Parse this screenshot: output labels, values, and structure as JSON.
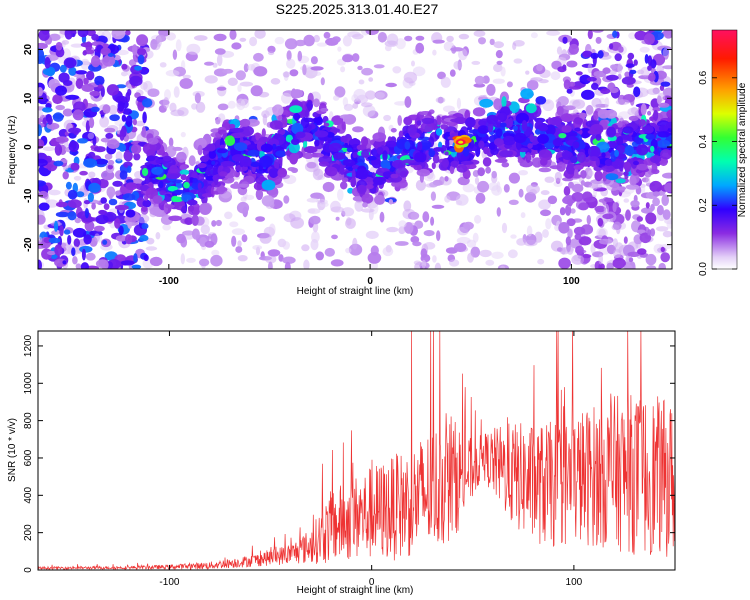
{
  "title": "S225.2025.313.01.40.E27",
  "chart_data": [
    {
      "type": "heatmap",
      "name": "spectrogram",
      "xlabel": "Height of straight line (km)",
      "ylabel": "Frequency (Hz)",
      "xlim": [
        -165,
        150
      ],
      "ylim": [
        -25,
        24
      ],
      "xticks": [
        -100,
        0,
        100
      ],
      "yticks": [
        -20,
        -10,
        0,
        10,
        20
      ],
      "colorbar": {
        "label": "Normalized spectral amplitude",
        "range": [
          0,
          0.75
        ],
        "ticks": [
          0.0,
          0.2,
          0.4,
          0.6
        ],
        "tick_labels": [
          "0.0",
          "0.2",
          "0.4",
          "0.6"
        ]
      },
      "ridge": {
        "description": "dominant frequency ridge (Hz) vs height (km)",
        "x": [
          -110,
          -100,
          -90,
          -80,
          -70,
          -60,
          -50,
          -40,
          -30,
          -20,
          -10,
          0,
          10,
          20,
          30,
          40,
          50,
          60,
          70,
          80,
          90,
          100,
          110,
          120,
          130,
          140,
          150
        ],
        "y": [
          -4,
          -7,
          -10,
          -5,
          0,
          -2,
          -3,
          3,
          5,
          0,
          -2,
          -5,
          -3,
          0,
          1,
          0,
          1,
          2,
          4,
          3,
          2,
          0,
          1,
          -1,
          0,
          1,
          2
        ]
      },
      "peak": {
        "x": 45,
        "y": 1,
        "value": 0.72
      }
    },
    {
      "type": "line",
      "name": "snr",
      "xlabel": "Height of straight line (km)",
      "ylabel": "SNR (10 * v/v)",
      "xlim": [
        -165,
        150
      ],
      "ylim": [
        0,
        1280
      ],
      "xticks": [
        -100,
        0,
        100
      ],
      "yticks": [
        0,
        200,
        400,
        600,
        800,
        1000,
        1200
      ],
      "color": "#ee3333",
      "envelope": {
        "x": [
          -165,
          -120,
          -100,
          -80,
          -60,
          -40,
          -30,
          -20,
          -10,
          0,
          10,
          20,
          30,
          40,
          50,
          55,
          60,
          70,
          80,
          90,
          100,
          110,
          120,
          130,
          140,
          150
        ],
        "base": [
          10,
          12,
          15,
          22,
          45,
          80,
          120,
          210,
          250,
          280,
          300,
          340,
          400,
          450,
          520,
          600,
          560,
          480,
          430,
          420,
          450,
          470,
          480,
          470,
          460,
          440
        ],
        "spread": [
          8,
          10,
          15,
          25,
          40,
          70,
          120,
          250,
          280,
          320,
          350,
          380,
          420,
          420,
          200,
          150,
          230,
          360,
          400,
          430,
          450,
          480,
          520,
          540,
          540,
          520
        ]
      }
    }
  ]
}
